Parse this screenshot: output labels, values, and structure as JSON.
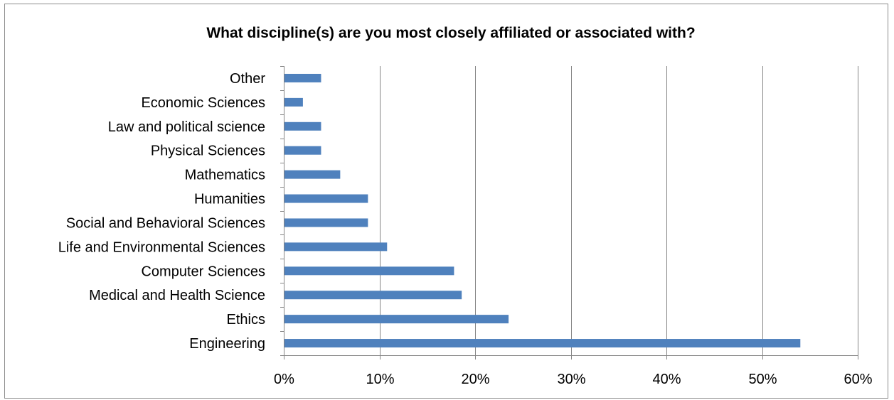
{
  "chart_data": {
    "type": "bar",
    "orientation": "horizontal",
    "title": "What discipline(s) are you most closely affiliated or associated with?",
    "categories": [
      "Engineering",
      "Ethics",
      "Medical and Health Science",
      "Computer Sciences",
      "Life and Environmental Sciences",
      "Social and Behavioral Sciences",
      "Humanities",
      "Mathematics",
      "Physical Sciences",
      "Law and political science",
      "Economic Sciences",
      "Other"
    ],
    "values": [
      0.54,
      0.235,
      0.186,
      0.178,
      0.108,
      0.088,
      0.088,
      0.059,
      0.039,
      0.039,
      0.02,
      0.039
    ],
    "xlim": [
      0,
      0.6
    ],
    "x_ticks": [
      0,
      0.1,
      0.2,
      0.3,
      0.4,
      0.5,
      0.6
    ],
    "x_tick_labels": [
      "0%",
      "10%",
      "20%",
      "30%",
      "40%",
      "50%",
      "60%"
    ],
    "xlabel": "",
    "ylabel": "",
    "grid": "vertical",
    "legend": "none",
    "bar_color": "#4f81bd",
    "grid_color": "#868686"
  }
}
